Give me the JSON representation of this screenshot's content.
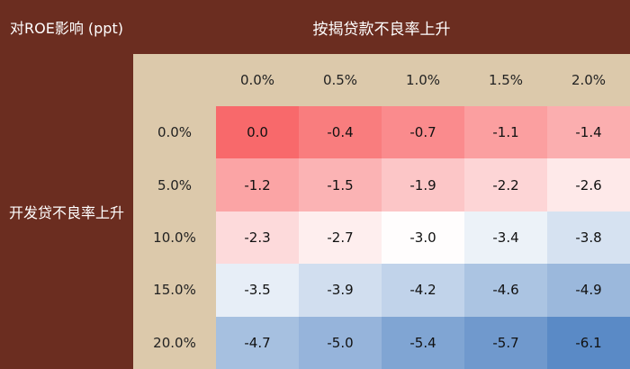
{
  "chart_data": {
    "type": "heatmap",
    "corner_label": "对ROE影响 (ppt)",
    "col_title": "按揭贷款不良率上升",
    "row_title": "开发贷不良率上升",
    "col_labels": [
      "0.0%",
      "0.5%",
      "1.0%",
      "1.5%",
      "2.0%"
    ],
    "row_labels": [
      "0.0%",
      "5.0%",
      "10.0%",
      "15.0%",
      "20.0%"
    ],
    "values": [
      [
        "0.0",
        "-0.4",
        "-0.7",
        "-1.1",
        "-1.4"
      ],
      [
        "-1.2",
        "-1.5",
        "-1.9",
        "-2.2",
        "-2.6"
      ],
      [
        "-2.3",
        "-2.7",
        "-3.0",
        "-3.4",
        "-3.8"
      ],
      [
        "-3.5",
        "-3.9",
        "-4.2",
        "-4.6",
        "-4.9"
      ],
      [
        "-4.7",
        "-5.0",
        "-5.4",
        "-5.7",
        "-6.1"
      ]
    ],
    "color_scale": {
      "high": "#f8696b",
      "mid": "#ffffff",
      "low": "#5a8ac6"
    }
  }
}
